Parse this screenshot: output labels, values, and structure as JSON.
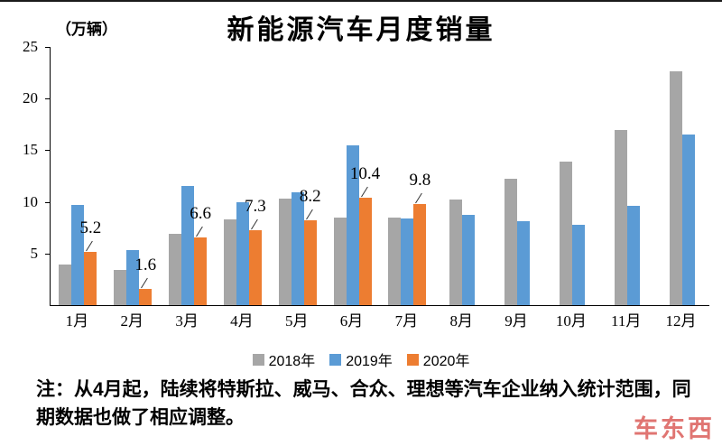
{
  "chart_data": {
    "type": "bar",
    "title": "新能源汽车月度销量",
    "ylabel": "（万辆）",
    "categories": [
      "1月",
      "2月",
      "3月",
      "4月",
      "5月",
      "6月",
      "7月",
      "8月",
      "9月",
      "10月",
      "11月",
      "12月"
    ],
    "series": [
      {
        "name": "2018年",
        "color": "#a6a6a6",
        "values": [
          3.9,
          3.4,
          6.9,
          8.3,
          10.3,
          8.5,
          8.5,
          10.2,
          12.2,
          13.9,
          17.0,
          22.6
        ]
      },
      {
        "name": "2019年",
        "color": "#5b9bd5",
        "values": [
          9.7,
          5.3,
          11.5,
          10.0,
          10.9,
          15.5,
          8.4,
          8.7,
          8.1,
          7.8,
          9.6,
          16.5
        ]
      },
      {
        "name": "2020年",
        "color": "#ed7d31",
        "values": [
          5.2,
          1.6,
          6.6,
          7.3,
          8.2,
          10.4,
          9.8,
          null,
          null,
          null,
          null,
          null
        ]
      }
    ],
    "data_labels": {
      "series_index": 2,
      "texts": [
        "5.2",
        "1.6",
        "6.6",
        "7.3",
        "8.2",
        "10.4",
        "9.8"
      ]
    },
    "ylim": [
      0,
      25
    ],
    "yticks": [
      5,
      10,
      15,
      20,
      25
    ],
    "grid": false,
    "legend_position": "bottom"
  },
  "note": "注：从4月起，陆续将特斯拉、威马、合众、理想等汽车企业纳入统计范围，同期数据也做了相应调整。",
  "watermark": "车东西"
}
